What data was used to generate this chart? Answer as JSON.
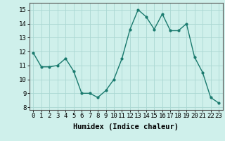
{
  "x": [
    0,
    1,
    2,
    3,
    4,
    5,
    6,
    7,
    8,
    9,
    10,
    11,
    12,
    13,
    14,
    15,
    16,
    17,
    18,
    19,
    20,
    21,
    22,
    23
  ],
  "y": [
    11.9,
    10.9,
    10.9,
    11.0,
    11.5,
    10.6,
    9.0,
    9.0,
    8.7,
    9.2,
    10.0,
    11.5,
    13.6,
    15.0,
    14.5,
    13.6,
    14.7,
    13.5,
    13.5,
    14.0,
    11.6,
    10.5,
    8.7,
    8.3
  ],
  "line_color": "#1a7a6e",
  "marker": "o",
  "marker_size": 2.0,
  "bg_color": "#cff0eb",
  "grid_color": "#aad8d3",
  "xlabel": "Humidex (Indice chaleur)",
  "ylim": [
    7.8,
    15.5
  ],
  "xlim": [
    -0.5,
    23.5
  ],
  "yticks": [
    8,
    9,
    10,
    11,
    12,
    13,
    14,
    15
  ],
  "xticks": [
    0,
    1,
    2,
    3,
    4,
    5,
    6,
    7,
    8,
    9,
    10,
    11,
    12,
    13,
    14,
    15,
    16,
    17,
    18,
    19,
    20,
    21,
    22,
    23
  ],
  "xtick_labels": [
    "0",
    "1",
    "2",
    "3",
    "4",
    "5",
    "6",
    "7",
    "8",
    "9",
    "10",
    "11",
    "12",
    "13",
    "14",
    "15",
    "16",
    "17",
    "18",
    "19",
    "20",
    "21",
    "22",
    "23"
  ],
  "xlabel_fontsize": 7.5,
  "tick_fontsize": 6.5
}
